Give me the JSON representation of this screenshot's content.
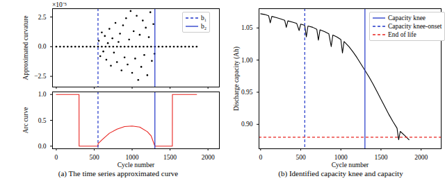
{
  "chart_data": [
    {
      "type": "scatter",
      "ylabel": "Approximated curvature",
      "annotations": [
        "×10⁻⁵"
      ],
      "x": [
        0,
        50,
        100,
        150,
        200,
        250,
        300,
        350,
        400,
        450,
        500,
        550,
        600,
        650,
        700,
        750,
        800,
        850,
        900,
        950,
        1000,
        1050,
        1100,
        1150,
        1200,
        1250,
        1300,
        1350,
        1400,
        1450,
        1500,
        1550,
        1600,
        1650,
        1700,
        1750,
        1800,
        1850,
        560,
        580,
        600,
        620,
        640,
        660,
        680,
        700,
        720,
        740,
        760,
        780,
        800,
        820,
        840,
        860,
        880,
        900,
        920,
        940,
        960,
        980,
        1000,
        1020,
        1040,
        1060,
        1080,
        1100,
        1120,
        1140,
        1160,
        1180,
        1200,
        1220,
        1240,
        1260,
        1280,
        1295
      ],
      "values": [
        0,
        0,
        0,
        0,
        0,
        0,
        0,
        0,
        0,
        0,
        0,
        0,
        0,
        0,
        0,
        0,
        0,
        0,
        0,
        0,
        0,
        0,
        0,
        0,
        0,
        0,
        0,
        0,
        0,
        0,
        0,
        0,
        0,
        0,
        0,
        0,
        0,
        0,
        0.5,
        -0.8,
        1.2,
        -0.4,
        0.9,
        -1.1,
        0.3,
        1.5,
        -1.6,
        0.7,
        -0.5,
        2.0,
        -1.3,
        0.4,
        1.1,
        -2.0,
        1.8,
        -0.9,
        2.4,
        -1.5,
        0.6,
        3.0,
        -2.2,
        1.3,
        -1.0,
        2.6,
        -2.8,
        1.0,
        -1.7,
        2.2,
        -0.7,
        1.6,
        -2.4,
        0.8,
        2.9,
        -1.2,
        1.9,
        -0.6
      ],
      "color": "#000000",
      "marker": "circle",
      "xlim": [
        -50,
        2150
      ],
      "xticks": [
        0,
        500,
        1000,
        1500,
        2000
      ],
      "tick_labels": "y",
      "ylim": [
        -3.4,
        3.2
      ],
      "yticks": [
        {
          "value": -2.5,
          "label": "−2.5"
        },
        {
          "value": 0,
          "label": "0.0"
        },
        {
          "value": 2.5,
          "label": "2.5"
        }
      ],
      "legend": "upper right",
      "vlines": [
        {
          "name": "b₁",
          "x": 550,
          "color": "#1f35c8",
          "line_style": "dashed"
        },
        {
          "name": "b₂",
          "x": 1300,
          "color": "#1f35c8",
          "line_style": "solid"
        }
      ]
    },
    {
      "type": "line",
      "xlabel": "Cycle number",
      "ylabel": "Arc curve",
      "caption": "(a) The time series approximated curve",
      "x": [
        0,
        300,
        301,
        550,
        551,
        600,
        700,
        800,
        900,
        1000,
        1100,
        1200,
        1250,
        1300,
        1530,
        1531,
        1850
      ],
      "values": [
        1,
        1,
        0,
        0,
        0.05,
        0.12,
        0.25,
        0.33,
        0.38,
        0.39,
        0.37,
        0.28,
        0.2,
        0,
        0,
        1,
        1
      ],
      "color": "#e8231f",
      "xlim": [
        -50,
        2150
      ],
      "xticks": [
        0,
        500,
        1000,
        1500,
        2000
      ],
      "ylim": [
        -0.05,
        1.05
      ],
      "yticks": [
        {
          "value": 0,
          "label": "0.0"
        },
        {
          "value": 0.5,
          "label": "0.5"
        },
        {
          "value": 1,
          "label": "1.0"
        }
      ],
      "vlines": [
        {
          "x": 550,
          "color": "#1f35c8",
          "line_style": "dashed"
        },
        {
          "x": 1300,
          "color": "#1f35c8",
          "line_style": "solid"
        }
      ]
    },
    {
      "type": "line",
      "xlabel": "Cycle number",
      "ylabel": "Discharge capacity (Ah)",
      "caption": "(b) Identified capacity knee and capacity",
      "x": [
        0,
        50,
        100,
        120,
        140,
        200,
        250,
        300,
        320,
        340,
        400,
        450,
        480,
        500,
        550,
        570,
        590,
        650,
        700,
        720,
        740,
        800,
        850,
        880,
        900,
        950,
        1000,
        1020,
        1040,
        1100,
        1150,
        1200,
        1250,
        1300,
        1350,
        1400,
        1450,
        1500,
        1550,
        1600,
        1650,
        1700,
        1720,
        1740,
        1800,
        1850
      ],
      "values": [
        1.072,
        1.071,
        1.069,
        1.058,
        1.068,
        1.066,
        1.064,
        1.062,
        1.051,
        1.061,
        1.059,
        1.057,
        1.046,
        1.056,
        1.054,
        1.036,
        1.053,
        1.051,
        1.048,
        1.031,
        1.047,
        1.044,
        1.041,
        1.021,
        1.039,
        1.036,
        1.032,
        1.011,
        1.029,
        1.021,
        1.013,
        1.004,
        0.994,
        0.984,
        0.974,
        0.963,
        0.951,
        0.939,
        0.927,
        0.915,
        0.904,
        0.894,
        0.876,
        0.889,
        0.882,
        0.876
      ],
      "color": "#000000",
      "xlim": [
        -20,
        2250
      ],
      "xticks": [
        0,
        500,
        1000,
        1500,
        2000
      ],
      "ylim": [
        0.862,
        1.08
      ],
      "yticks": [
        {
          "value": 0.9,
          "label": "0.90"
        },
        {
          "value": 0.95,
          "label": "0.95"
        },
        {
          "value": 1.0,
          "label": "1.00"
        },
        {
          "value": 1.05,
          "label": "1.05"
        }
      ],
      "legend": "upper right",
      "vlines": [
        {
          "name": "Capacity knee",
          "x": 1300,
          "color": "#1f35c8",
          "line_style": "solid"
        },
        {
          "name": "Capacity knee-onset",
          "x": 550,
          "color": "#1f35c8",
          "line_style": "dashed"
        }
      ],
      "hlines": [
        {
          "name": "End of life",
          "y": 0.88,
          "color": "#e8231f",
          "line_style": "dashed"
        }
      ]
    }
  ]
}
